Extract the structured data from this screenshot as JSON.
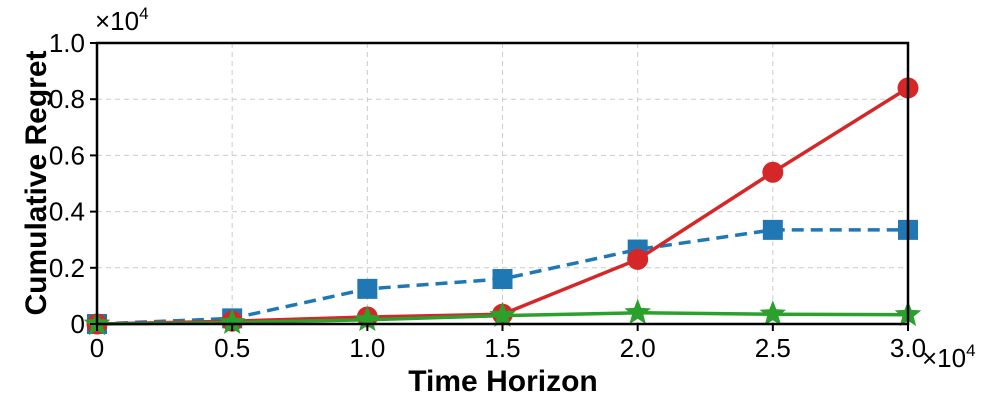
{
  "chart_data": {
    "type": "line",
    "xlabel": "Time Horizon",
    "ylabel": "Cumulative Regret",
    "x_multiplier": {
      "base": "×10",
      "exp": "4"
    },
    "y_multiplier": {
      "base": "×10",
      "exp": "4"
    },
    "x": [
      0,
      0.5,
      1.0,
      1.5,
      2.0,
      2.5,
      3.0
    ],
    "x_tick_labels": [
      "0",
      "0.5",
      "1.0",
      "1.5",
      "2.0",
      "2.5",
      "3.0"
    ],
    "y_ticks": [
      0,
      0.2,
      0.4,
      0.6,
      0.8,
      1.0
    ],
    "y_tick_labels": [
      "0",
      "0.2",
      "0.4",
      "0.6",
      "0.8",
      "1.0"
    ],
    "xlim": [
      0,
      3.0
    ],
    "ylim": [
      0,
      1.0
    ],
    "grid": true,
    "series": [
      {
        "values": [
          0,
          0.02,
          0.125,
          0.16,
          0.265,
          0.335,
          0.335
        ],
        "color": "#1f77b4",
        "linestyle": "dashed",
        "marker": "square"
      },
      {
        "values": [
          0,
          0.01,
          0.025,
          0.035,
          0.23,
          0.54,
          0.84
        ],
        "color": "#d62728",
        "linestyle": "solid",
        "marker": "circle"
      },
      {
        "values": [
          0,
          0.005,
          0.015,
          0.03,
          0.04,
          0.035,
          0.033
        ],
        "color": "#2ca02c",
        "linestyle": "solid",
        "marker": "star"
      }
    ]
  }
}
